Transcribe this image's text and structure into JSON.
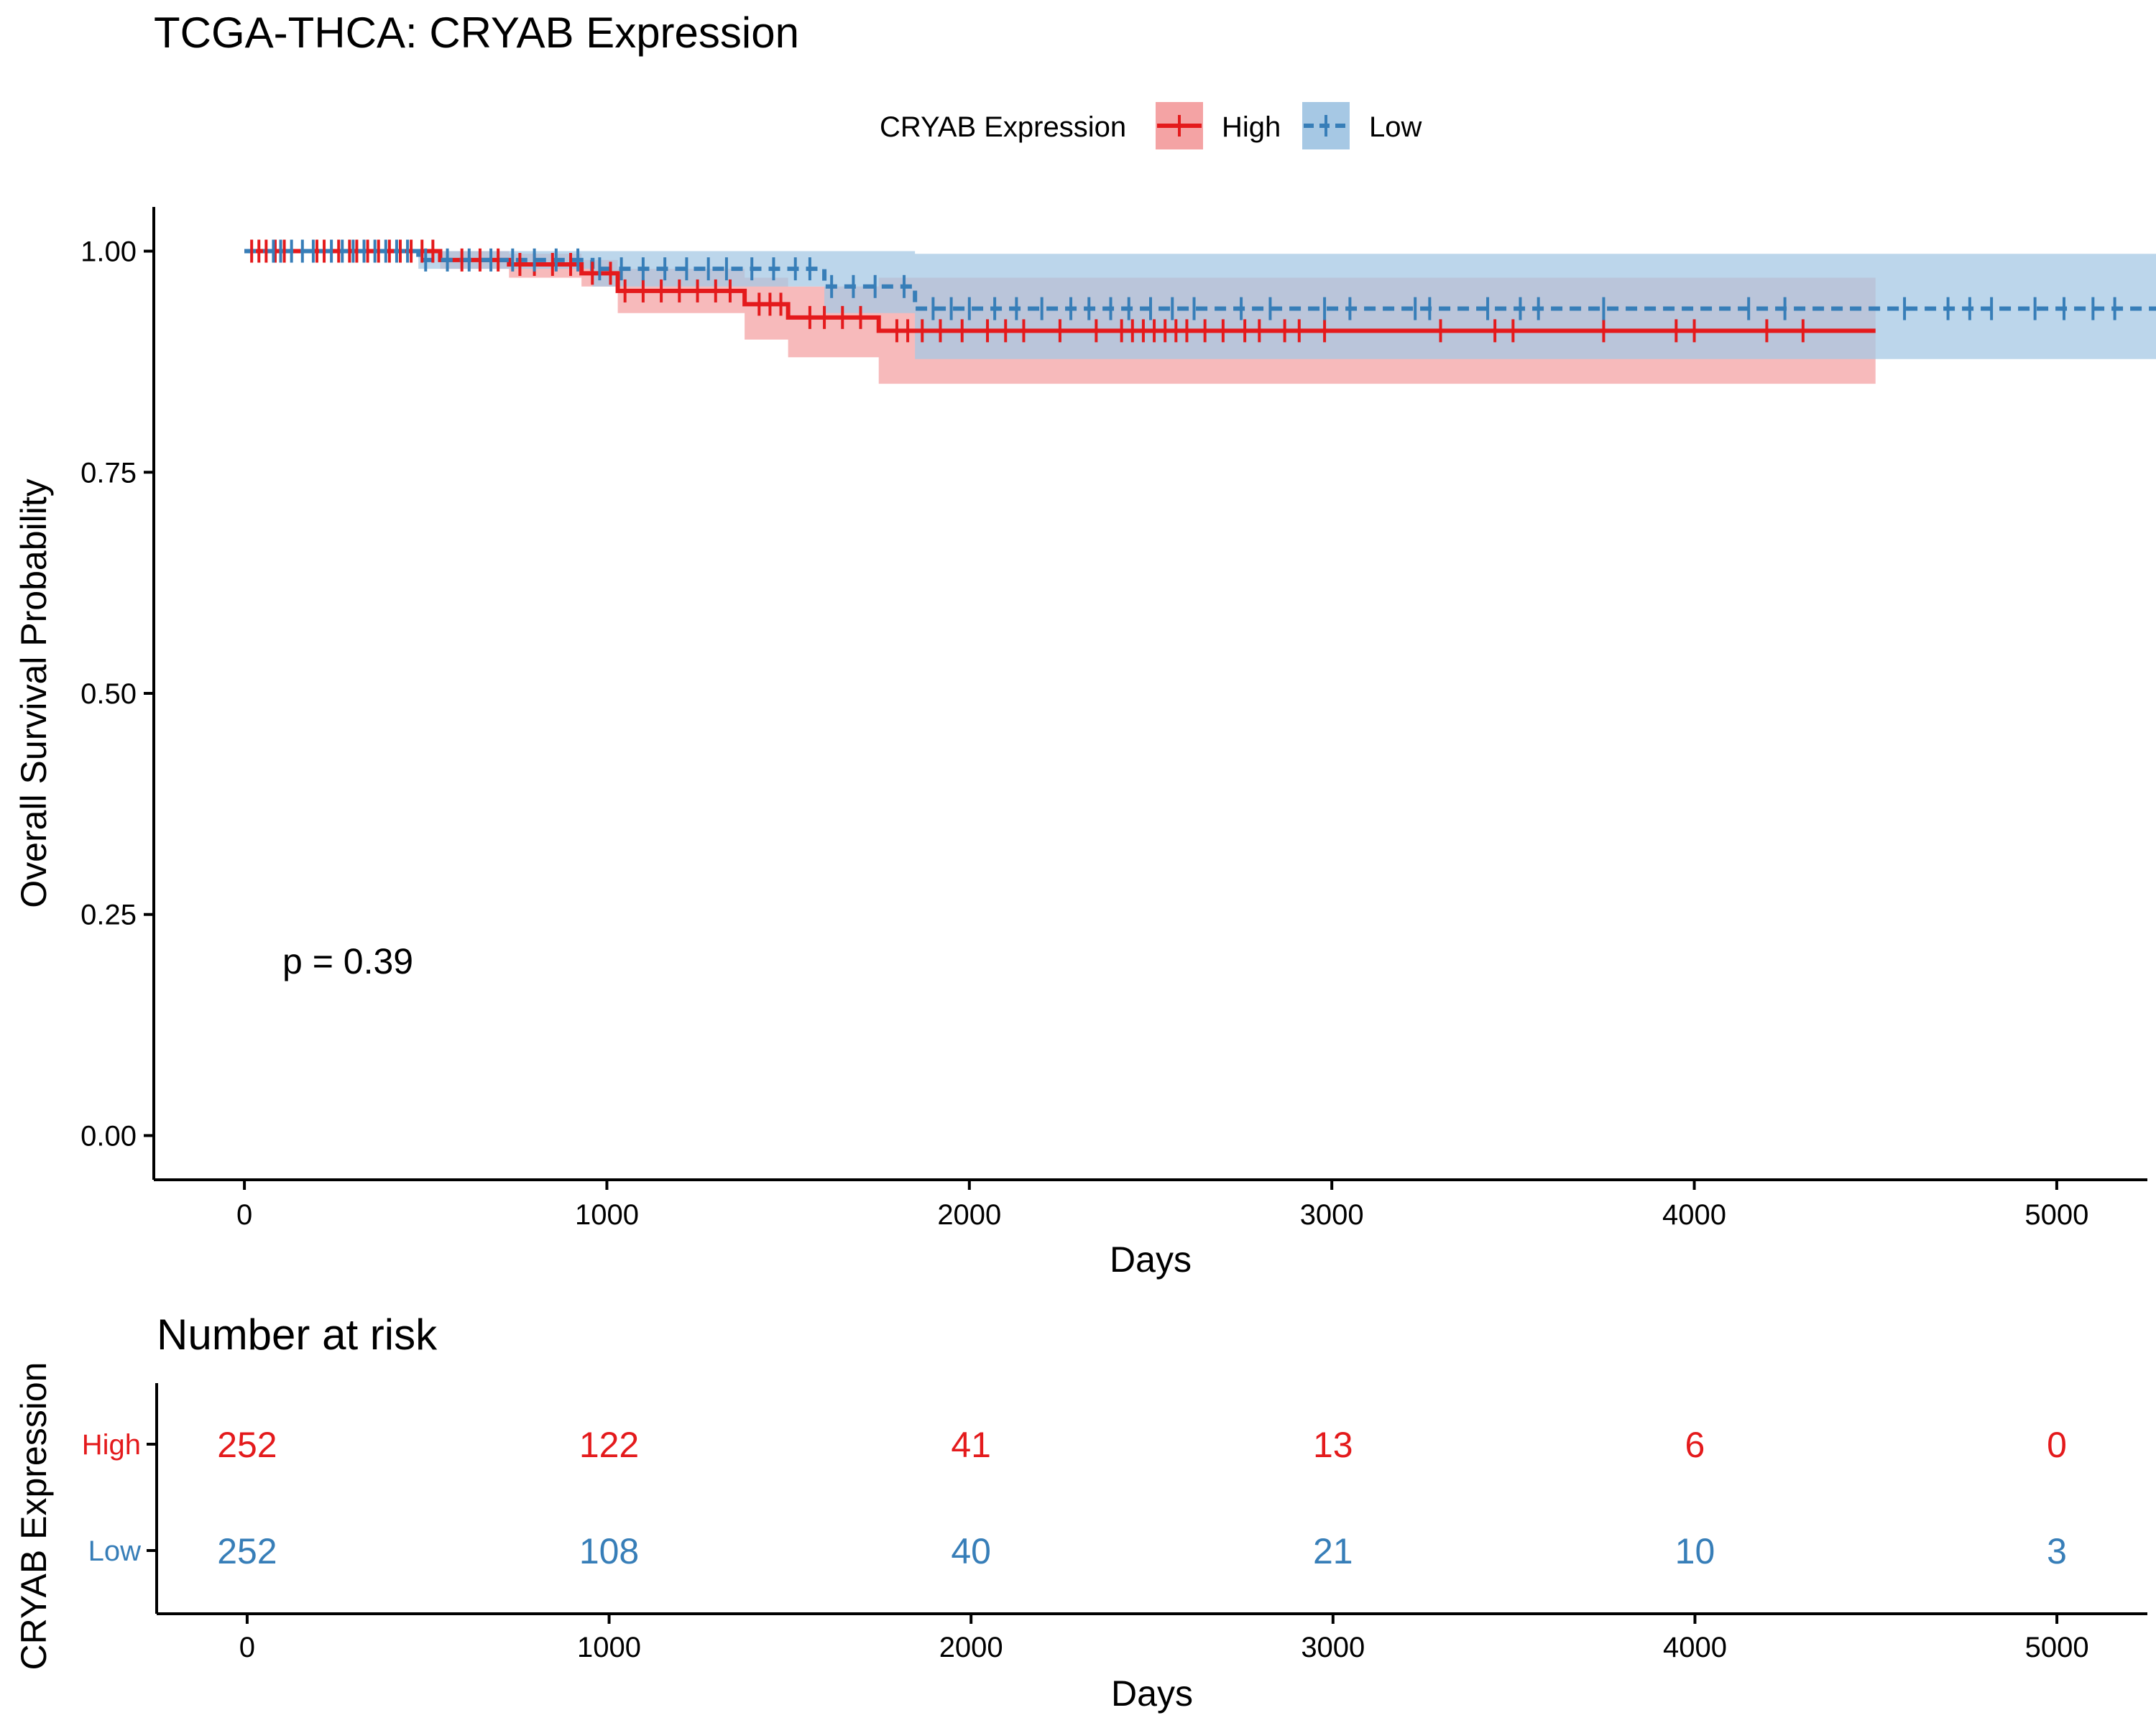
{
  "title": "TCGA-THCA: CRYAB Expression",
  "legend": {
    "title": "CRYAB Expression",
    "placement": "top",
    "items": [
      {
        "label": "High",
        "color": "#E41A1C"
      },
      {
        "label": "Low",
        "color": "#377EB8"
      }
    ]
  },
  "chart_data": {
    "type": "line",
    "subtype": "kaplan-meier",
    "title": "TCGA-THCA: CRYAB Expression",
    "xlabel": "Days",
    "ylabel": "Overall Survival Probability",
    "xlim": [
      -250,
      5250
    ],
    "ylim": [
      -0.05,
      1.05
    ],
    "xticks": [
      0,
      1000,
      2000,
      3000,
      4000,
      5000
    ],
    "yticks": [
      "0.00",
      "0.25",
      "0.50",
      "0.75",
      "1.00"
    ],
    "grid": false,
    "pvalue_label": "p = 0.39",
    "series": [
      {
        "name": "High",
        "color": "#E41A1C",
        "band_color": "#F4A3A4",
        "steps": [
          [
            0,
            1.0
          ],
          [
            540,
            0.99
          ],
          [
            730,
            0.985
          ],
          [
            930,
            0.975
          ],
          [
            1030,
            0.955
          ],
          [
            1380,
            0.94
          ],
          [
            1500,
            0.925
          ],
          [
            1750,
            0.91
          ],
          [
            4500,
            0.91
          ]
        ],
        "ci_upper": [
          [
            0,
            1.0
          ],
          [
            540,
            1.0
          ],
          [
            730,
            0.997
          ],
          [
            930,
            0.99
          ],
          [
            1030,
            0.98
          ],
          [
            1380,
            0.97
          ],
          [
            1500,
            0.96
          ],
          [
            1750,
            0.97
          ],
          [
            4500,
            0.97
          ]
        ],
        "ci_lower": [
          [
            0,
            1.0
          ],
          [
            540,
            0.98
          ],
          [
            730,
            0.97
          ],
          [
            930,
            0.96
          ],
          [
            1030,
            0.93
          ],
          [
            1380,
            0.9
          ],
          [
            1500,
            0.88
          ],
          [
            1750,
            0.85
          ],
          [
            4500,
            0.85
          ]
        ],
        "censor_times": [
          20,
          40,
          60,
          85,
          110,
          200,
          220,
          260,
          290,
          310,
          340,
          370,
          400,
          430,
          460,
          490,
          520,
          600,
          650,
          700,
          760,
          800,
          850,
          900,
          960,
          1010,
          1050,
          1100,
          1150,
          1200,
          1250,
          1300,
          1340,
          1420,
          1450,
          1480,
          1560,
          1600,
          1650,
          1700,
          1800,
          1830,
          1870,
          1920,
          1980,
          2050,
          2100,
          2150,
          2250,
          2350,
          2420,
          2450,
          2480,
          2510,
          2540,
          2570,
          2600,
          2650,
          2700,
          2760,
          2800,
          2870,
          2910,
          2980,
          3300,
          3450,
          3500,
          3750,
          3950,
          4000,
          4200,
          4300
        ]
      },
      {
        "name": "Low",
        "color": "#377EB8",
        "band_color": "#A6C8E4",
        "steps": [
          [
            0,
            1.0
          ],
          [
            480,
            0.99
          ],
          [
            960,
            0.98
          ],
          [
            1600,
            0.96
          ],
          [
            1850,
            0.935
          ],
          [
            5300,
            0.935
          ]
        ],
        "ci_upper": [
          [
            0,
            1.0
          ],
          [
            480,
            1.0
          ],
          [
            960,
            1.0
          ],
          [
            1600,
            1.0
          ],
          [
            1850,
            0.997
          ],
          [
            5300,
            0.997
          ]
        ],
        "ci_lower": [
          [
            0,
            1.0
          ],
          [
            480,
            0.98
          ],
          [
            960,
            0.96
          ],
          [
            1600,
            0.93
          ],
          [
            1850,
            0.878
          ],
          [
            5300,
            0.878
          ]
        ],
        "censor_times": [
          80,
          100,
          130,
          160,
          190,
          240,
          270,
          300,
          330,
          360,
          390,
          420,
          450,
          500,
          560,
          620,
          680,
          740,
          800,
          860,
          920,
          980,
          1040,
          1100,
          1160,
          1220,
          1280,
          1330,
          1400,
          1460,
          1520,
          1560,
          1620,
          1680,
          1740,
          1820,
          1900,
          1950,
          2000,
          2070,
          2130,
          2200,
          2280,
          2330,
          2390,
          2440,
          2500,
          2560,
          2620,
          2750,
          2830,
          2980,
          3050,
          3230,
          3270,
          3430,
          3520,
          3570,
          3750,
          4150,
          4250,
          4580,
          4700,
          4760,
          4820,
          4940,
          5020,
          5100,
          5160
        ]
      }
    ]
  },
  "risk_table": {
    "title": "Number at risk",
    "ylabel": "CRYAB Expression",
    "xlabel": "Days",
    "time_points": [
      0,
      1000,
      2000,
      3000,
      4000,
      5000
    ],
    "groups": [
      {
        "label": "High",
        "color": "#E41A1C",
        "counts": [
          "252",
          "122",
          "41",
          "13",
          "6",
          "0"
        ]
      },
      {
        "label": "Low",
        "color": "#377EB8",
        "counts": [
          "252",
          "108",
          "40",
          "21",
          "10",
          "3"
        ]
      }
    ]
  }
}
